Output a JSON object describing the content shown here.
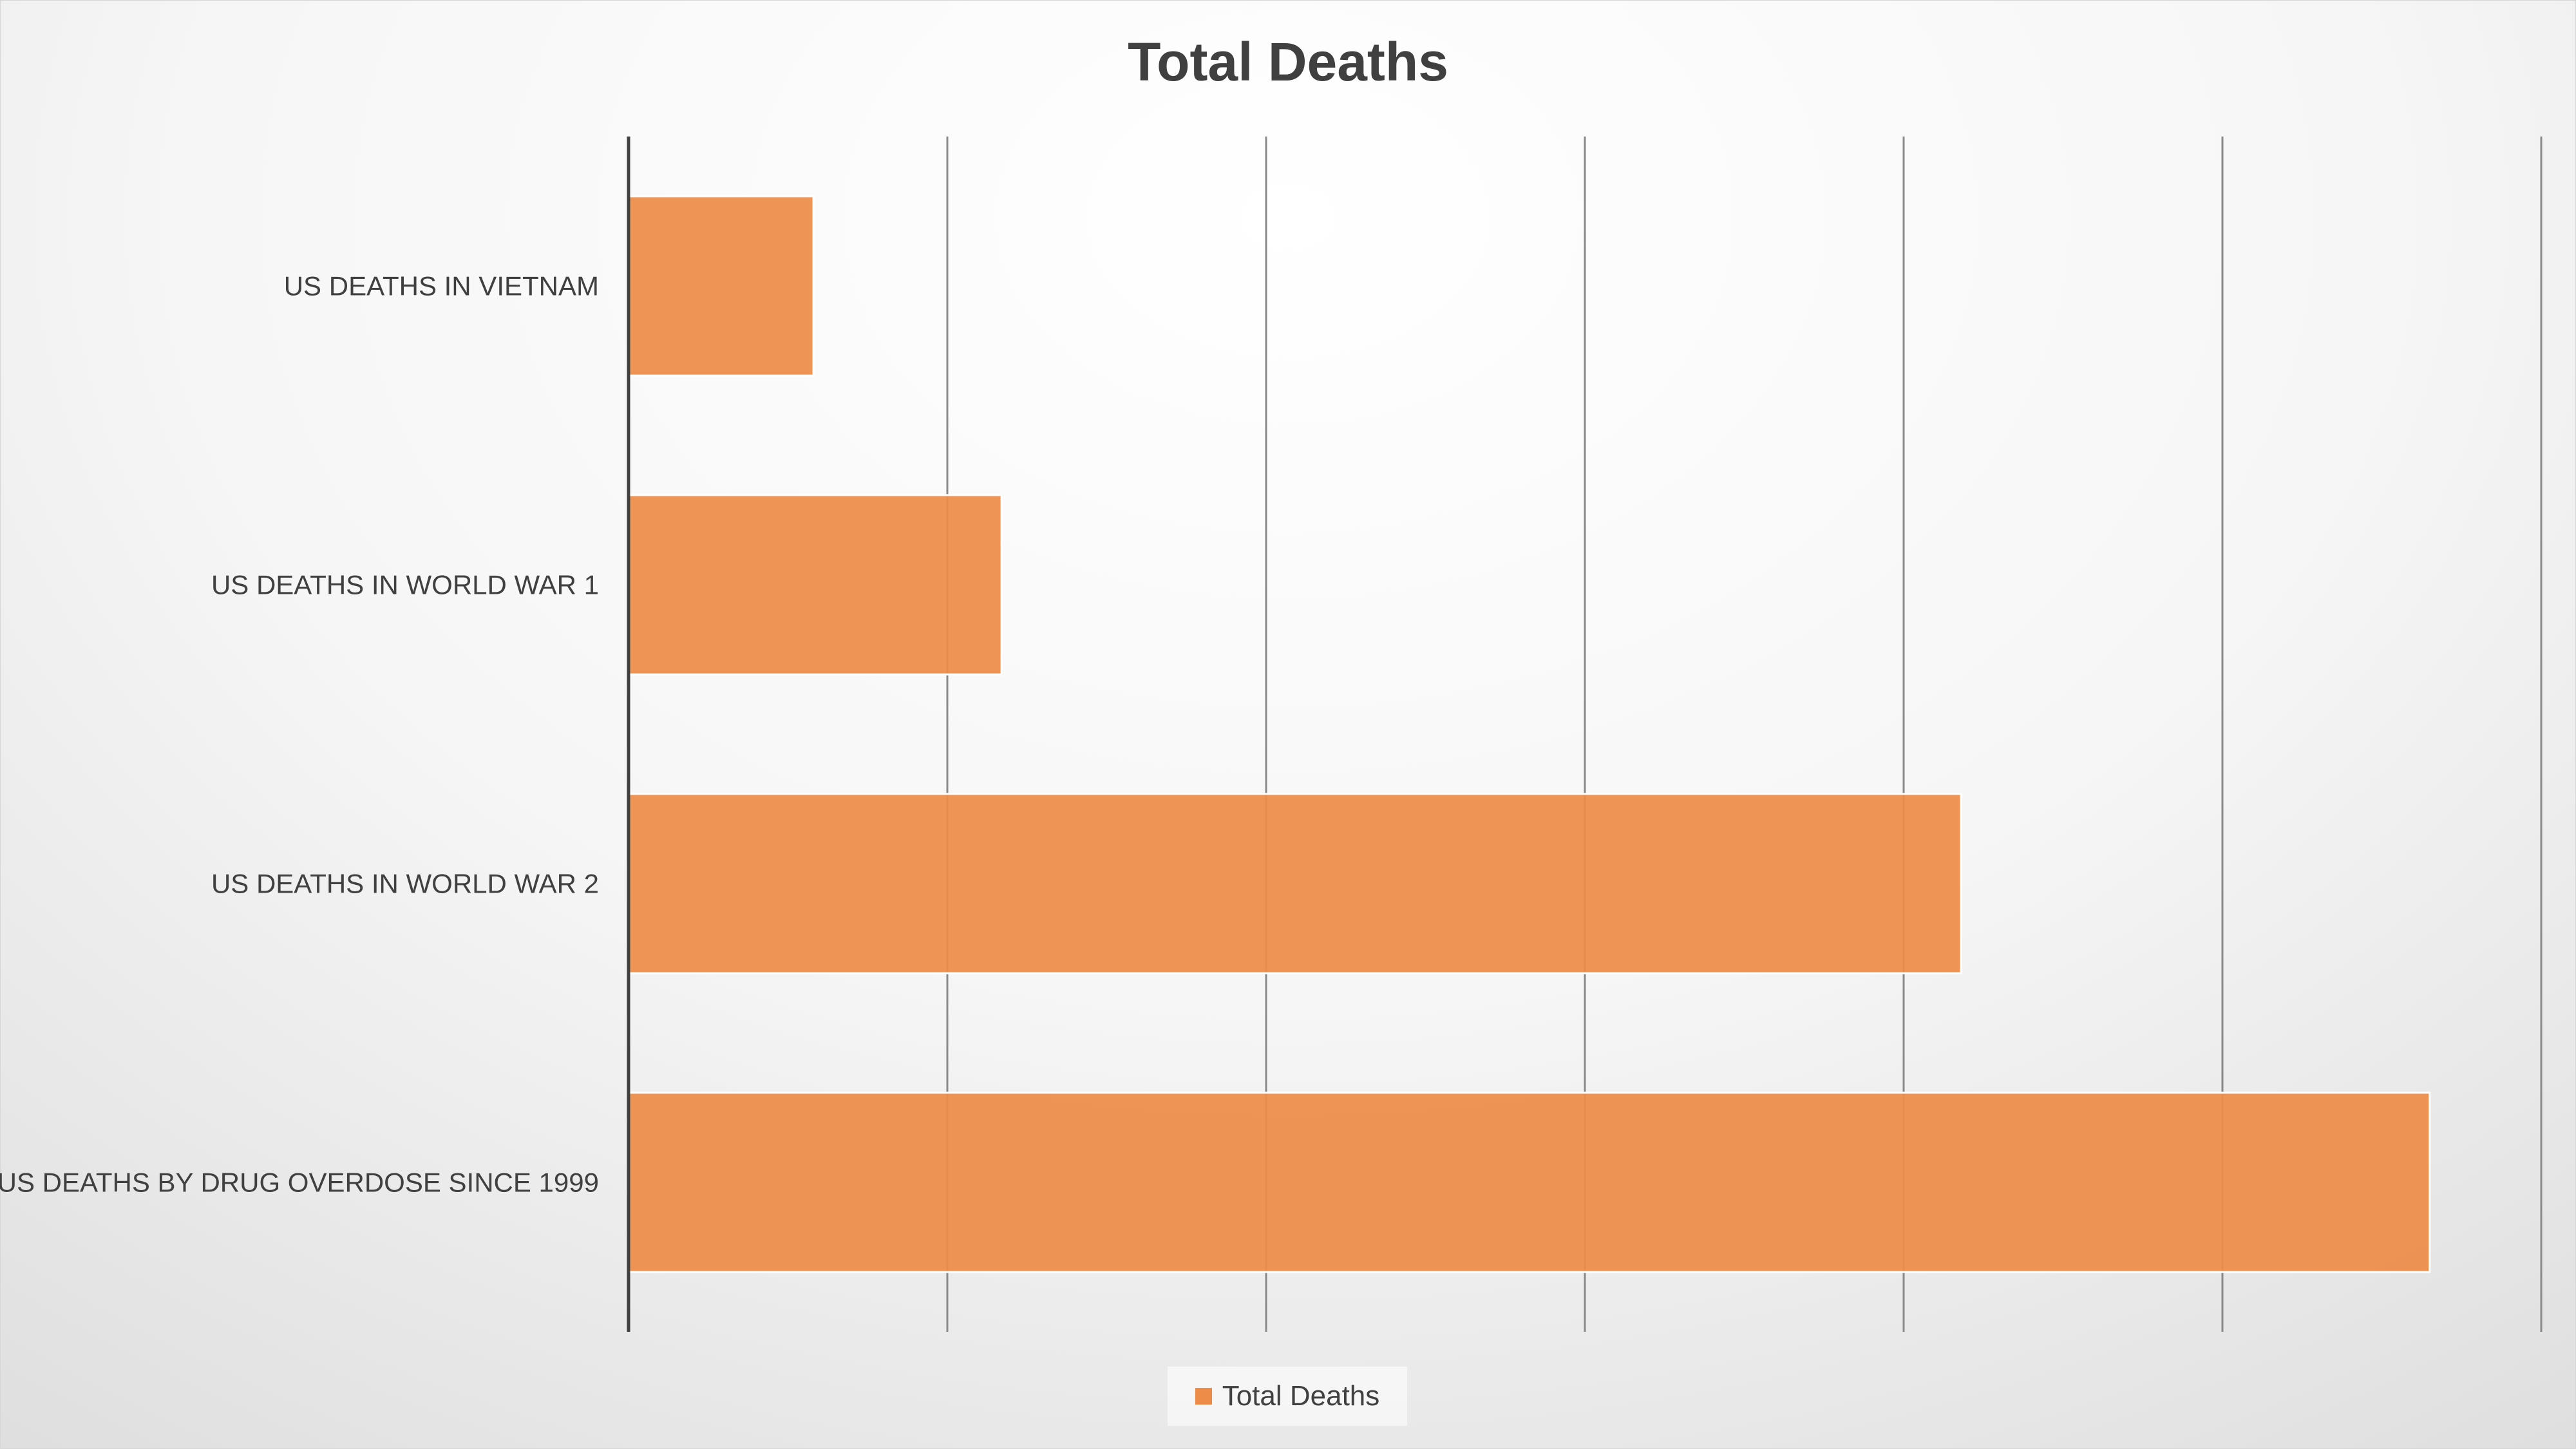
{
  "chart_data": {
    "type": "bar",
    "orientation": "horizontal",
    "title": "Total Deaths",
    "categories": [
      "US DEATHS IN VIETNAM",
      "US DEATHS IN WORLD WAR 1",
      "US DEATHS IN WORLD WAR 2",
      "US DEATHS BY DRUG OVERDOSE SINCE 1999"
    ],
    "series": [
      {
        "name": "Total Deaths",
        "values": [
          58000,
          117000,
          418000,
          565000
        ],
        "color": "#ed8c48"
      }
    ],
    "xlim": [
      0,
      600000
    ],
    "x_gridline_step": 100000,
    "x_tick_labels_shown": false,
    "grid": true,
    "legend": {
      "placement": "bottom",
      "entries": [
        "Total Deaths"
      ]
    }
  }
}
